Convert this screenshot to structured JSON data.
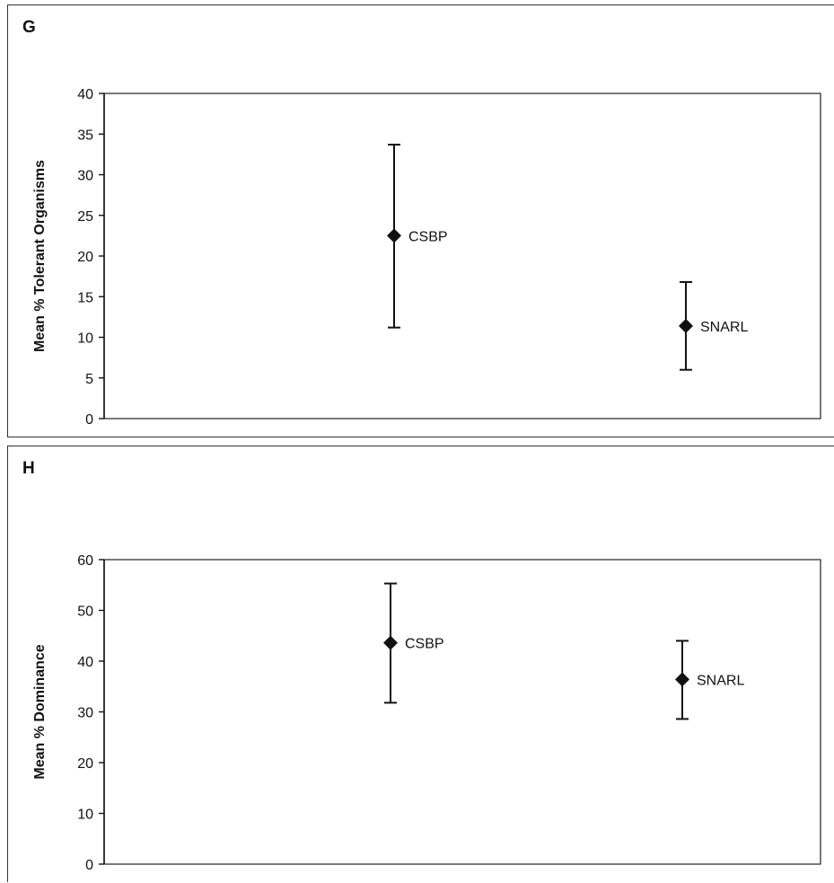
{
  "chart_data": [
    {
      "panel": "G",
      "type": "scatter",
      "title": "",
      "xlabel": "",
      "ylabel": "Mean % Tolerant Organisms",
      "ylim": [
        0,
        40
      ],
      "yticks": [
        0,
        5,
        10,
        15,
        20,
        25,
        30,
        35,
        40
      ],
      "grid": false,
      "points": [
        {
          "label": "CSBP",
          "mean": 22.5,
          "low": 11.2,
          "high": 33.7
        },
        {
          "label": "SNARL",
          "mean": 11.4,
          "low": 6.0,
          "high": 16.8
        }
      ]
    },
    {
      "panel": "H",
      "type": "scatter",
      "title": "",
      "xlabel": "",
      "ylabel": "Mean % Dominance",
      "ylim": [
        0,
        60
      ],
      "yticks": [
        0,
        10,
        20,
        30,
        40,
        50,
        60
      ],
      "grid": false,
      "points": [
        {
          "label": "CSBP",
          "mean": 43.6,
          "low": 31.8,
          "high": 55.3
        },
        {
          "label": "SNARL",
          "mean": 36.4,
          "low": 28.6,
          "high": 44.0
        }
      ]
    }
  ]
}
